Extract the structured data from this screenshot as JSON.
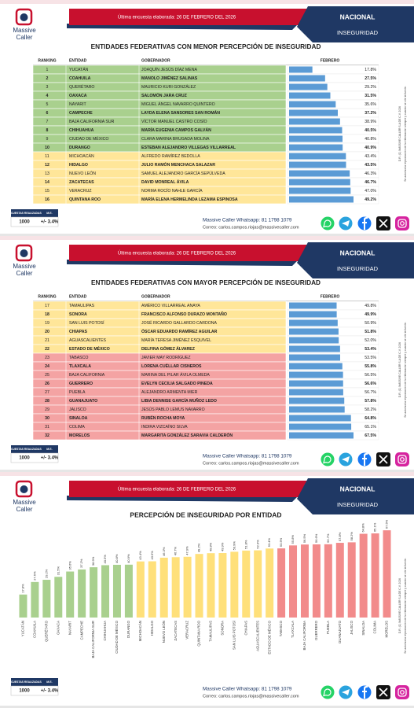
{
  "header": {
    "survey_note": "Última encuesta elaborada: 26 DE FEBRERO DEL 2026",
    "brand_line1": "Massive",
    "brand_line2": "Caller",
    "scope": "NACIONAL",
    "topic": "INSEGURIDAD"
  },
  "side_note": [
    "D.R. (C) MASSIVE CALLER S.A DE C.V. 2026",
    "Se autoriza la reproducción de la información siempre y cuando se cite la fuente."
  ],
  "footer": {
    "sample_label": "ENCUESTAS REALIZADAS",
    "margin_label": "M.E.",
    "sample": "1000",
    "margin": "+/- 3.4%",
    "whatsapp": "Massive Caller Whatsapp: 81 1798 1079",
    "email": "Correo: carlos.campos.riojas@massivecaller.com"
  },
  "tables": [
    {
      "title": "ENTIDADES FEDERATIVAS CON MENOR PERCEPCIÓN DE INSEGURIDAD",
      "columns": [
        "RANKING",
        "ENTIDAD",
        "GOBERNADOR",
        "FEBRERO"
      ],
      "bar_color": "#5b9bd5",
      "rows": [
        {
          "rank": 1,
          "state": "YUCATÁN",
          "governor": "JOAQUÍN JESÚS DÍAZ MENA",
          "value": 17.8,
          "value_label": "17.8%",
          "color": "#a9d08e"
        },
        {
          "rank": 2,
          "state": "COAHUILA",
          "governor": "MANOLO JIMÉNEZ SALINAS",
          "value": 27.5,
          "value_label": "27.5%",
          "color": "#a9d08e"
        },
        {
          "rank": 3,
          "state": "QUERÉTARO",
          "governor": "MAURICIO KURI GONZÁLEZ",
          "value": 29.2,
          "value_label": "29.2%",
          "color": "#a9d08e"
        },
        {
          "rank": 4,
          "state": "OAXACA",
          "governor": "SALOMÓN JARA CRUZ",
          "value": 31.5,
          "value_label": "31.5%",
          "color": "#a9d08e"
        },
        {
          "rank": 5,
          "state": "NAYARIT",
          "governor": "MIGUEL ÁNGEL NAVARRO QUINTERO",
          "value": 35.6,
          "value_label": "35.6%",
          "color": "#a9d08e"
        },
        {
          "rank": 6,
          "state": "CAMPECHE",
          "governor": "LAYDA ELENA SANSORES SAN ROMÁN",
          "value": 37.2,
          "value_label": "37.2%",
          "color": "#a9d08e"
        },
        {
          "rank": 7,
          "state": "BAJA CALIFORNIA SUR",
          "governor": "VÍCTOR MANUEL CASTRO COSÍO",
          "value": 38.9,
          "value_label": "38.9%",
          "color": "#a9d08e"
        },
        {
          "rank": 8,
          "state": "CHIHUAHUA",
          "governor": "MARÍA EUGENIA CAMPOS GALVÁN",
          "value": 40.5,
          "value_label": "40.5%",
          "color": "#a9d08e"
        },
        {
          "rank": 9,
          "state": "CIUDAD DE MÉXICO",
          "governor": "CLARA MARINA BRUGADA MOLINA",
          "value": 40.8,
          "value_label": "40.8%",
          "color": "#a9d08e"
        },
        {
          "rank": 10,
          "state": "DURANGO",
          "governor": "ESTEBAN ALEJANDRO VILLEGAS VILLARREAL",
          "value": 40.9,
          "value_label": "40.9%",
          "color": "#a9d08e"
        },
        {
          "rank": 11,
          "state": "MICHOACÁN",
          "governor": "ALFREDO RAMÍREZ BEDOLLA",
          "value": 43.4,
          "value_label": "43.4%",
          "color": "#ffe699"
        },
        {
          "rank": 12,
          "state": "HIDALGO",
          "governor": "JULIO RAMÓN MENCHACA SALAZAR",
          "value": 43.5,
          "value_label": "43.5%",
          "color": "#ffe699"
        },
        {
          "rank": 13,
          "state": "NUEVO LEÓN",
          "governor": "SAMUEL ALEJANDRO GARCÍA SEPÚLVEDA",
          "value": 46.3,
          "value_label": "46.3%",
          "color": "#ffe699"
        },
        {
          "rank": 14,
          "state": "ZACATECAS",
          "governor": "DAVID MONREAL ÁVILA",
          "value": 46.7,
          "value_label": "46.7%",
          "color": "#ffe699"
        },
        {
          "rank": 15,
          "state": "VERACRUZ",
          "governor": "NORMA ROCÍO NAHLE GARCÍA",
          "value": 47.0,
          "value_label": "47.0%",
          "color": "#ffe699"
        },
        {
          "rank": 16,
          "state": "QUINTANA ROO",
          "governor": "MARÍA ELENA HERMELINDA LEZAMA ESPINOSA",
          "value": 49.2,
          "value_label": "49.2%",
          "color": "#ffe699"
        }
      ]
    },
    {
      "title": "ENTIDADES FEDERATIVAS CON MAYOR PERCEPCIÓN DE INSEGURIDAD",
      "columns": [
        "RANKING",
        "ENTIDAD",
        "GOBERNADOR",
        "FEBRERO"
      ],
      "bar_color": "#5b9bd5",
      "rows": [
        {
          "rank": 17,
          "state": "TAMAULIPAS",
          "governor": "AMÉRICO VILLARREAL ANAYA",
          "value": 49.8,
          "value_label": "49.8%",
          "color": "#ffe699"
        },
        {
          "rank": 18,
          "state": "SONORA",
          "governor": "FRANCISCO ALFONSO DURAZO MONTAÑO",
          "value": 49.9,
          "value_label": "49.9%",
          "color": "#ffe699"
        },
        {
          "rank": 19,
          "state": "SAN LUIS POTOSÍ",
          "governor": "JOSÉ RICARDO GALLARDO CARDONA",
          "value": 50.9,
          "value_label": "50.9%",
          "color": "#ffe699"
        },
        {
          "rank": 20,
          "state": "CHIAPAS",
          "governor": "ÓSCAR EDUARDO RAMÍREZ AGUILAR",
          "value": 51.8,
          "value_label": "51.8%",
          "color": "#ffe699"
        },
        {
          "rank": 21,
          "state": "AGUASCALIENTES",
          "governor": "MARÍA TERESA JIMÉNEZ ESQUIVEL",
          "value": 52.0,
          "value_label": "52.0%",
          "color": "#ffe699"
        },
        {
          "rank": 22,
          "state": "ESTADO DE MÉXICO",
          "governor": "DELFINA GÓMEZ ÁLVAREZ",
          "value": 53.4,
          "value_label": "53.4%",
          "color": "#ffe699"
        },
        {
          "rank": 23,
          "state": "TABASCO",
          "governor": "JAVIER MAY RODRÍGUEZ",
          "value": 53.5,
          "value_label": "53.5%",
          "color": "#f4a3a3"
        },
        {
          "rank": 24,
          "state": "TLAXCALA",
          "governor": "LORENA CUÉLLAR CISNEROS",
          "value": 55.8,
          "value_label": "55.8%",
          "color": "#f4a3a3"
        },
        {
          "rank": 25,
          "state": "BAJA CALIFORNIA",
          "governor": "MARINA DEL PILAR ÁVILA OLMEDA",
          "value": 56.5,
          "value_label": "56.5%",
          "color": "#f4a3a3"
        },
        {
          "rank": 26,
          "state": "GUERRERO",
          "governor": "EVELYN CECILIA SALGADO PINEDA",
          "value": 56.6,
          "value_label": "56.6%",
          "color": "#f4a3a3"
        },
        {
          "rank": 27,
          "state": "PUEBLA",
          "governor": "ALEJANDRO ARMENTA MIER",
          "value": 56.7,
          "value_label": "56.7%",
          "color": "#f4a3a3"
        },
        {
          "rank": 28,
          "state": "GUANAJUATO",
          "governor": "LIBIA DENNISE GARCÍA MUÑOZ LEDO",
          "value": 57.8,
          "value_label": "57.8%",
          "color": "#f4a3a3"
        },
        {
          "rank": 29,
          "state": "JALISCO",
          "governor": "JESÚS PABLO LEMUS NAVARRO",
          "value": 58.2,
          "value_label": "58.2%",
          "color": "#f4a3a3"
        },
        {
          "rank": 30,
          "state": "SINALOA",
          "governor": "RUBÉN ROCHA MOYA",
          "value": 64.8,
          "value_label": "64.8%",
          "color": "#f4a3a3"
        },
        {
          "rank": 31,
          "state": "COLIMA",
          "governor": "INDIRA VIZCAÍNO SILVA",
          "value": 65.1,
          "value_label": "65.1%",
          "color": "#f4a3a3"
        },
        {
          "rank": 32,
          "state": "MORELOS",
          "governor": "MARGARITA GONZÁLEZ SARAVIA CALDERÓN",
          "value": 67.5,
          "value_label": "67.5%",
          "color": "#f4a3a3"
        }
      ]
    }
  ],
  "chart_data": {
    "type": "bar",
    "title": "PERCEPCIÓN DE INSEGURIDAD POR ENTIDAD",
    "categories": [
      "YUCATÁN",
      "COAHUILA",
      "QUERÉTARO",
      "OAXACA",
      "NAYARIT",
      "CAMPECHE",
      "BAJA CALIFORNIA SUR",
      "CHIHUAHUA",
      "CIUDAD DE MÉXICO",
      "DURANGO",
      "MICHOACÁN",
      "HIDALGO",
      "NUEVO LEÓN",
      "ZACATECAS",
      "VERACRUZ",
      "QUINTANA ROO",
      "TAMAULIPAS",
      "SONORA",
      "SAN LUIS POTOSÍ",
      "CHIAPAS",
      "AGUASCALIENTES",
      "ESTADO DE MÉXICO",
      "TABASCO",
      "TLAXCALA",
      "BAJA CALIFORNIA",
      "GUERRERO",
      "PUEBLA",
      "GUANAJUATO",
      "JALISCO",
      "SINALOA",
      "COLIMA",
      "MORELOS"
    ],
    "values": [
      17.8,
      27.5,
      29.2,
      31.5,
      35.6,
      37.2,
      38.9,
      40.5,
      40.8,
      40.9,
      43.4,
      43.5,
      46.3,
      46.7,
      47.0,
      49.2,
      49.8,
      49.9,
      50.9,
      51.8,
      52.0,
      53.4,
      53.5,
      55.8,
      56.5,
      56.6,
      56.7,
      57.8,
      58.2,
      64.8,
      65.1,
      67.5
    ],
    "value_labels": [
      "17.8%",
      "27.5%",
      "29.2%",
      "31.5%",
      "35.6%",
      "37.2%",
      "38.9%",
      "40.5%",
      "40.8%",
      "40.9%",
      "43.4%",
      "43.5%",
      "46.3%",
      "46.7%",
      "47.0%",
      "49.2%",
      "49.8%",
      "49.9%",
      "50.9%",
      "51.8%",
      "52.0%",
      "53.4%",
      "53.5%",
      "55.8%",
      "56.5%",
      "56.6%",
      "56.7%",
      "57.8%",
      "58.2%",
      "64.8%",
      "65.1%",
      "67.5%"
    ],
    "colors": [
      "#a9d08e",
      "#a9d08e",
      "#a9d08e",
      "#a9d08e",
      "#a9d08e",
      "#a9d08e",
      "#a9d08e",
      "#a9d08e",
      "#a9d08e",
      "#a9d08e",
      "#ffe07a",
      "#ffe07a",
      "#ffe07a",
      "#ffe07a",
      "#ffe07a",
      "#ffe07a",
      "#ffe07a",
      "#ffe07a",
      "#ffe07a",
      "#ffe07a",
      "#ffe07a",
      "#ffe07a",
      "#f28b8b",
      "#f28b8b",
      "#f28b8b",
      "#f28b8b",
      "#f28b8b",
      "#f28b8b",
      "#f28b8b",
      "#f28b8b",
      "#f28b8b",
      "#f28b8b"
    ],
    "ylim": [
      0,
      70
    ]
  }
}
